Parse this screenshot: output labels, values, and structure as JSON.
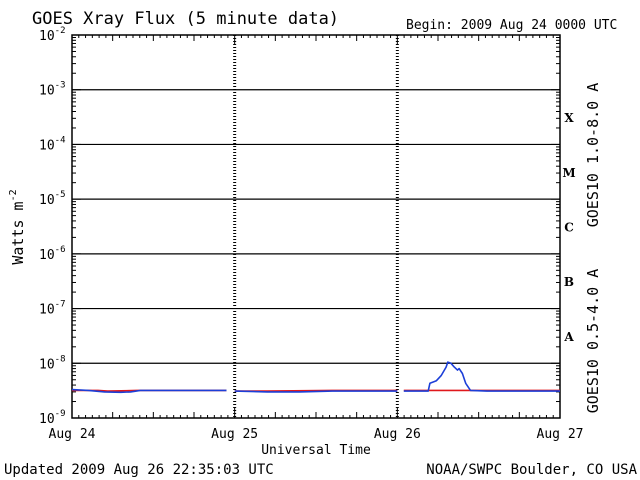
{
  "chart_data": {
    "type": "line",
    "title": "GOES Xray Flux (5 minute data)",
    "begin_label": "Begin:  2009 Aug 24 0000 UTC",
    "xlabel": "Universal Time",
    "ylabel": "Watts m",
    "ylabel_superscript": "-2",
    "x_unit": "days since Aug 24 0000 UTC",
    "xlim": [
      0,
      3
    ],
    "x_ticks": [
      {
        "value": 0,
        "label": "Aug 24"
      },
      {
        "value": 1,
        "label": "Aug 25"
      },
      {
        "value": 2,
        "label": "Aug 26"
      },
      {
        "value": 3,
        "label": "Aug 27"
      }
    ],
    "y_scale": "log",
    "ylim": [
      1e-09,
      0.01
    ],
    "y_ticks": [
      {
        "exp": -2,
        "label": "10",
        "sup": "-2"
      },
      {
        "exp": -3,
        "label": "10",
        "sup": "-3"
      },
      {
        "exp": -4,
        "label": "10",
        "sup": "-4"
      },
      {
        "exp": -5,
        "label": "10",
        "sup": "-5"
      },
      {
        "exp": -6,
        "label": "10",
        "sup": "-6"
      },
      {
        "exp": -7,
        "label": "10",
        "sup": "-7"
      },
      {
        "exp": -8,
        "label": "10",
        "sup": "-8"
      },
      {
        "exp": -9,
        "label": "10",
        "sup": "-9"
      }
    ],
    "flare_classes": [
      {
        "label": "X",
        "exp": -3.5
      },
      {
        "label": "M",
        "exp": -4.5
      },
      {
        "label": "C",
        "exp": -5.5
      },
      {
        "label": "B",
        "exp": -6.5
      },
      {
        "label": "A",
        "exp": -7.5
      }
    ],
    "grid": "horizontal at each decade from 1e-8 to 1e-3",
    "legend": "right side, vertical",
    "series": [
      {
        "name": "GOES10 1.0-8.0 A",
        "color": "#e0181c",
        "segments": [
          [
            [
              0.0,
              3.2e-09
            ],
            [
              0.16,
              3.2e-09
            ],
            [
              0.22,
              3.1e-09
            ],
            [
              0.4,
              3.2e-09
            ],
            [
              0.95,
              3.2e-09
            ]
          ],
          [
            [
              1.0,
              3.1e-09
            ],
            [
              1.2,
              3.1e-09
            ],
            [
              1.6,
              3.2e-09
            ],
            [
              2.0,
              3.2e-09
            ]
          ],
          [
            [
              2.04,
              3.2e-09
            ],
            [
              3.0,
              3.2e-09
            ]
          ]
        ]
      },
      {
        "name": "GOES10 0.5-4.0 A",
        "color": "#1c3fd8",
        "segments": [
          [
            [
              0.0,
              3.3e-09
            ],
            [
              0.1,
              3.2e-09
            ],
            [
              0.2,
              3e-09
            ],
            [
              0.3,
              2.95e-09
            ],
            [
              0.36,
              3e-09
            ],
            [
              0.42,
              3.2e-09
            ],
            [
              0.95,
              3.2e-09
            ]
          ],
          [
            [
              1.0,
              3.1e-09
            ],
            [
              1.2,
              3e-09
            ],
            [
              1.4,
              3e-09
            ],
            [
              1.6,
              3.1e-09
            ],
            [
              2.0,
              3.1e-09
            ]
          ],
          [
            [
              2.04,
              3.1e-09
            ],
            [
              2.19,
              3.1e-09
            ],
            [
              2.2,
              4.3e-09
            ],
            [
              2.24,
              4.8e-09
            ],
            [
              2.27,
              6e-09
            ],
            [
              2.3,
              8.5e-09
            ],
            [
              2.31,
              1.05e-08
            ],
            [
              2.33,
              1e-08
            ],
            [
              2.35,
              8.5e-09
            ],
            [
              2.37,
              7.5e-09
            ],
            [
              2.38,
              8e-09
            ],
            [
              2.4,
              6.5e-09
            ],
            [
              2.42,
              4.3e-09
            ],
            [
              2.45,
              3.2e-09
            ],
            [
              2.55,
              3.1e-09
            ],
            [
              3.0,
              3.1e-09
            ]
          ]
        ]
      }
    ]
  },
  "footer": {
    "updated": "Updated 2009 Aug 26 22:35:03 UTC",
    "credit": "NOAA/SWPC Boulder, CO USA"
  }
}
